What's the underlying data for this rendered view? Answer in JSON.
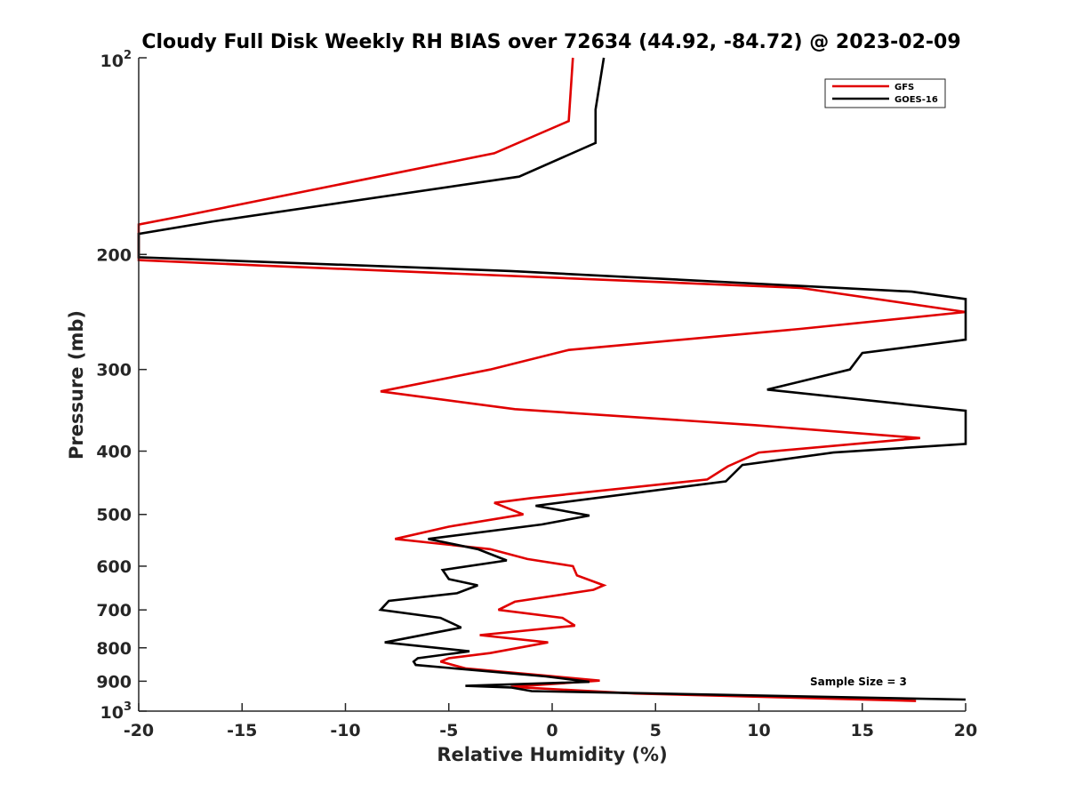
{
  "chart_data": {
    "type": "line",
    "title": "Cloudy Full Disk Weekly RH BIAS over 72634 (44.92, -84.72) @ 2023-02-09",
    "xlabel": "Relative Humidity (%)",
    "ylabel": "Pressure (mb)",
    "xlim": [
      -20,
      20
    ],
    "ylim": [
      100,
      1000
    ],
    "yscale": "log",
    "yreversed": true,
    "grid": false,
    "legend_position": "top-right",
    "x_ticks": [
      -20,
      -15,
      -10,
      -5,
      0,
      5,
      10,
      15,
      20
    ],
    "x_tick_labels": [
      "-20",
      "-15",
      "-10",
      "-5",
      "0",
      "5",
      "10",
      "15",
      "20"
    ],
    "y_ticks": [
      200,
      300,
      400,
      500,
      600,
      700,
      800,
      900
    ],
    "y_tick_labels": [
      "200",
      "300",
      "400",
      "500",
      "600",
      "700",
      "800",
      "900"
    ],
    "y_end_labels": {
      "top_base": "10",
      "top_exp": "2",
      "bottom_base": "10",
      "bottom_exp": "3"
    },
    "annotation": "Sample Size = 3",
    "series": [
      {
        "name": "GFS",
        "color": "#e00000",
        "points": [
          [
            1.0,
            100
          ],
          [
            0.8,
            125
          ],
          [
            -2.8,
            140
          ],
          [
            -18.0,
            175
          ],
          [
            -20.0,
            180
          ],
          [
            -20.0,
            204
          ],
          [
            -14.0,
            208
          ],
          [
            12.0,
            225
          ],
          [
            20.0,
            245
          ],
          [
            12.0,
            260
          ],
          [
            0.8,
            280
          ],
          [
            -3.0,
            300
          ],
          [
            -8.3,
            324
          ],
          [
            -1.8,
            345
          ],
          [
            9.8,
            365
          ],
          [
            17.8,
            382
          ],
          [
            10.0,
            402
          ],
          [
            8.5,
            422
          ],
          [
            7.5,
            442
          ],
          [
            -1.0,
            472
          ],
          [
            -2.8,
            480
          ],
          [
            -1.4,
            500
          ],
          [
            -5.0,
            522
          ],
          [
            -7.6,
            545
          ],
          [
            -3.0,
            565
          ],
          [
            -1.2,
            585
          ],
          [
            1.0,
            600
          ],
          [
            1.2,
            620
          ],
          [
            2.5,
            642
          ],
          [
            2.0,
            652
          ],
          [
            -1.8,
            680
          ],
          [
            -2.6,
            700
          ],
          [
            0.5,
            720
          ],
          [
            1.1,
            740
          ],
          [
            -3.5,
            765
          ],
          [
            -0.2,
            785
          ],
          [
            -3.0,
            815
          ],
          [
            -5.0,
            830
          ],
          [
            -5.4,
            840
          ],
          [
            -4.2,
            860
          ],
          [
            -0.1,
            884
          ],
          [
            2.3,
            898
          ],
          [
            -2.0,
            918
          ],
          [
            4.0,
            940
          ],
          [
            17.6,
            965
          ]
        ]
      },
      {
        "name": "GOES-16",
        "color": "#000000",
        "points": [
          [
            2.5,
            100
          ],
          [
            2.1,
            120
          ],
          [
            2.1,
            135
          ],
          [
            -1.6,
            152
          ],
          [
            -16.4,
            178
          ],
          [
            -20.0,
            186
          ],
          [
            -20.0,
            202
          ],
          [
            -2.0,
            212
          ],
          [
            17.4,
            228
          ],
          [
            20.0,
            234
          ],
          [
            20.0,
            270
          ],
          [
            15.0,
            283
          ],
          [
            14.4,
            300
          ],
          [
            10.4,
            322
          ],
          [
            20.0,
            347
          ],
          [
            20.0,
            390
          ],
          [
            13.6,
            402
          ],
          [
            9.2,
            420
          ],
          [
            8.4,
            445
          ],
          [
            -0.8,
            485
          ],
          [
            1.8,
            502
          ],
          [
            -0.5,
            518
          ],
          [
            -6.0,
            545
          ],
          [
            -3.6,
            565
          ],
          [
            -2.2,
            588
          ],
          [
            -5.3,
            608
          ],
          [
            -5.0,
            628
          ],
          [
            -3.6,
            642
          ],
          [
            -4.6,
            660
          ],
          [
            -7.9,
            678
          ],
          [
            -8.3,
            700
          ],
          [
            -5.4,
            720
          ],
          [
            -4.4,
            745
          ],
          [
            -8.1,
            785
          ],
          [
            -4.0,
            810
          ],
          [
            -6.5,
            830
          ],
          [
            -6.7,
            840
          ],
          [
            -6.6,
            850
          ],
          [
            -0.3,
            885
          ],
          [
            1.8,
            902
          ],
          [
            -4.2,
            915
          ],
          [
            -2.0,
            920
          ],
          [
            -1.0,
            932
          ],
          [
            20.0,
            960
          ]
        ]
      }
    ]
  }
}
